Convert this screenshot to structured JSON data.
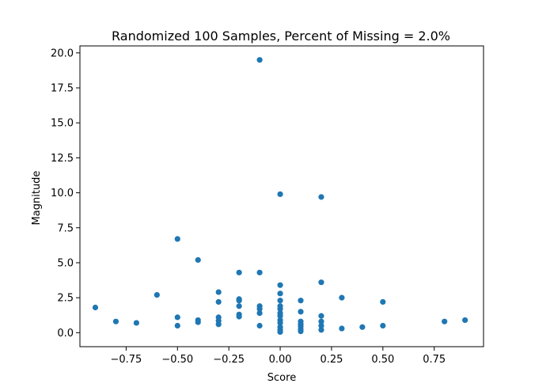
{
  "chart_data": {
    "type": "scatter",
    "title": "Randomized 100 Samples, Percent of Missing = 2.0%",
    "xlabel": "Score",
    "ylabel": "Magnitude",
    "xlim": [
      -0.975,
      0.99
    ],
    "ylim": [
      -1.0,
      20.5
    ],
    "xticks": [
      -0.75,
      -0.5,
      -0.25,
      0.0,
      0.25,
      0.5,
      0.75
    ],
    "xtick_labels": [
      "−0.75",
      "−0.50",
      "−0.25",
      "0.00",
      "0.25",
      "0.50",
      "0.75"
    ],
    "yticks": [
      0.0,
      2.5,
      5.0,
      7.5,
      10.0,
      12.5,
      15.0,
      17.5,
      20.0
    ],
    "ytick_labels": [
      "0.0",
      "2.5",
      "5.0",
      "7.5",
      "10.0",
      "12.5",
      "15.0",
      "17.5",
      "20.0"
    ],
    "grid": false,
    "marker_color": "#1f77b4",
    "points": [
      {
        "x": -0.9,
        "y": 1.8
      },
      {
        "x": -0.8,
        "y": 0.8
      },
      {
        "x": -0.7,
        "y": 0.7
      },
      {
        "x": -0.6,
        "y": 2.7
      },
      {
        "x": -0.5,
        "y": 6.7
      },
      {
        "x": -0.5,
        "y": 1.1
      },
      {
        "x": -0.5,
        "y": 0.5
      },
      {
        "x": -0.4,
        "y": 5.2
      },
      {
        "x": -0.4,
        "y": 0.9
      },
      {
        "x": -0.4,
        "y": 0.75
      },
      {
        "x": -0.3,
        "y": 2.9
      },
      {
        "x": -0.3,
        "y": 2.2
      },
      {
        "x": -0.3,
        "y": 1.1
      },
      {
        "x": -0.3,
        "y": 0.85
      },
      {
        "x": -0.3,
        "y": 0.6
      },
      {
        "x": -0.2,
        "y": 4.3
      },
      {
        "x": -0.2,
        "y": 2.4
      },
      {
        "x": -0.2,
        "y": 2.3
      },
      {
        "x": -0.2,
        "y": 1.9
      },
      {
        "x": -0.2,
        "y": 1.3
      },
      {
        "x": -0.2,
        "y": 1.15
      },
      {
        "x": -0.1,
        "y": 19.5
      },
      {
        "x": -0.1,
        "y": 4.3
      },
      {
        "x": -0.1,
        "y": 1.9
      },
      {
        "x": -0.1,
        "y": 1.7
      },
      {
        "x": -0.1,
        "y": 1.4
      },
      {
        "x": -0.1,
        "y": 0.5
      },
      {
        "x": 0.0,
        "y": 9.9
      },
      {
        "x": 0.0,
        "y": 3.4
      },
      {
        "x": 0.0,
        "y": 2.8
      },
      {
        "x": 0.0,
        "y": 2.3
      },
      {
        "x": 0.0,
        "y": 1.9
      },
      {
        "x": 0.0,
        "y": 1.7
      },
      {
        "x": 0.0,
        "y": 1.4
      },
      {
        "x": 0.0,
        "y": 1.2
      },
      {
        "x": 0.0,
        "y": 0.9
      },
      {
        "x": 0.0,
        "y": 0.7
      },
      {
        "x": 0.0,
        "y": 0.4
      },
      {
        "x": 0.0,
        "y": 0.2
      },
      {
        "x": 0.0,
        "y": 0.05
      },
      {
        "x": 0.1,
        "y": 2.3
      },
      {
        "x": 0.1,
        "y": 1.5
      },
      {
        "x": 0.1,
        "y": 0.8
      },
      {
        "x": 0.1,
        "y": 0.6
      },
      {
        "x": 0.1,
        "y": 0.45
      },
      {
        "x": 0.1,
        "y": 0.25
      },
      {
        "x": 0.1,
        "y": 0.1
      },
      {
        "x": 0.2,
        "y": 9.7
      },
      {
        "x": 0.2,
        "y": 3.6
      },
      {
        "x": 0.2,
        "y": 1.2
      },
      {
        "x": 0.2,
        "y": 0.8
      },
      {
        "x": 0.2,
        "y": 0.5
      },
      {
        "x": 0.2,
        "y": 0.2
      },
      {
        "x": 0.3,
        "y": 2.5
      },
      {
        "x": 0.3,
        "y": 0.3
      },
      {
        "x": 0.4,
        "y": 0.4
      },
      {
        "x": 0.5,
        "y": 2.2
      },
      {
        "x": 0.5,
        "y": 0.5
      },
      {
        "x": 0.8,
        "y": 0.8
      },
      {
        "x": 0.9,
        "y": 0.9
      }
    ]
  }
}
